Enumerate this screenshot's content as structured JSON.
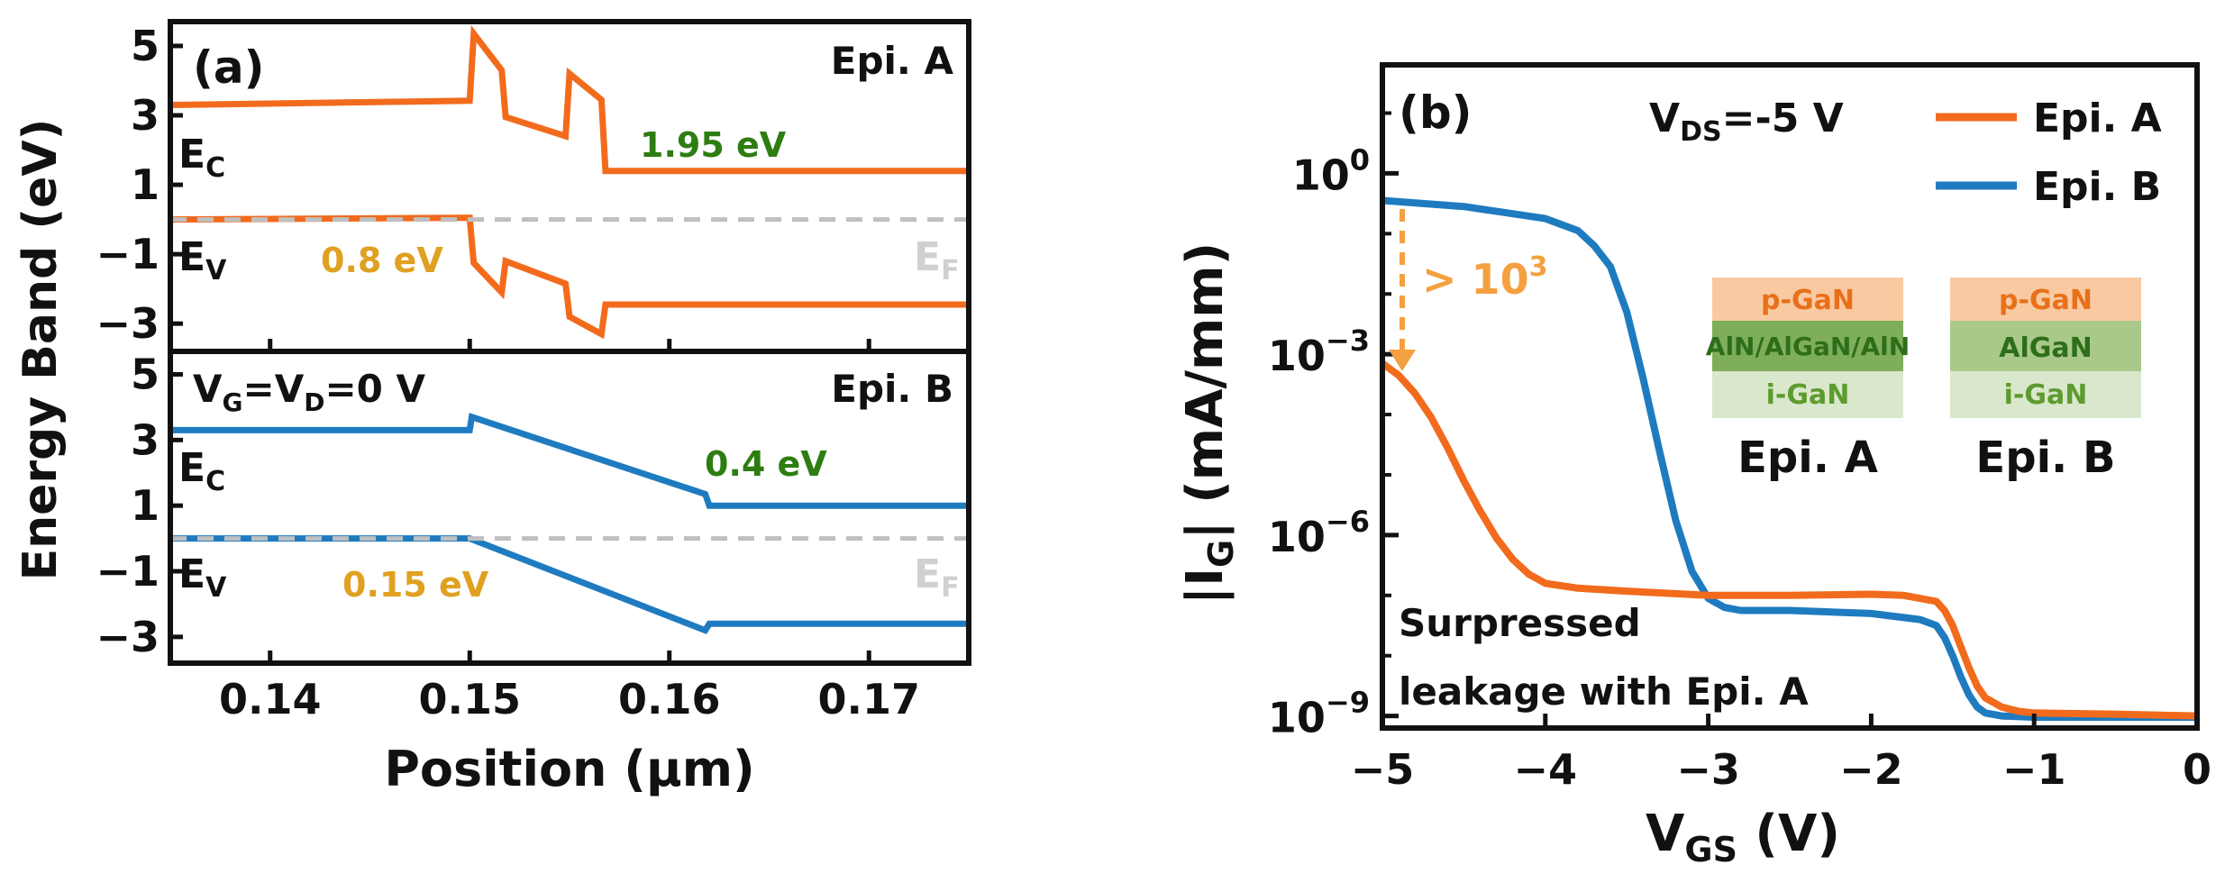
{
  "colors": {
    "epi_a": "#F26B1D",
    "epi_b": "#1F7BC0",
    "fermi": "#BFBFBF",
    "green_text": "#2E7D12",
    "gold_text": "#E0A020",
    "pgan": "#F9C9A2",
    "pgan_text": "#E8701A",
    "barrier": "#7FAE5A",
    "igan": "#D9E8CC",
    "igan_text": "#5E9B2E"
  },
  "chart_data": [
    {
      "id": "a",
      "type": "line",
      "panel_label": "(a)",
      "xlabel": "Position (µm)",
      "ylabel": "Energy Band (eV)",
      "xlim": [
        0.135,
        0.175
      ],
      "x_ticks": [
        "0.14",
        "0.15",
        "0.16",
        "0.17"
      ],
      "x_tick_values": [
        0.14,
        0.15,
        0.16,
        0.17
      ],
      "subplots": [
        {
          "id": "top",
          "name": "Epi. A",
          "ylim": [
            -3.8,
            5.7
          ],
          "y_ticks": [
            "5",
            "3",
            "1",
            "−1",
            "−3"
          ],
          "y_tick_values": [
            5,
            3,
            1,
            -1,
            -3
          ],
          "series": [
            {
              "name": "E_C",
              "x": [
                0.135,
                0.15,
                0.1502,
                0.1516,
                0.1518,
                0.1548,
                0.155,
                0.1566,
                0.1568,
                0.175
              ],
              "y": [
                3.3,
                3.42,
                5.35,
                4.3,
                2.95,
                2.4,
                4.2,
                3.45,
                1.4,
                1.4
              ]
            },
            {
              "name": "E_V",
              "x": [
                0.135,
                0.15,
                0.1502,
                0.1516,
                0.1518,
                0.1548,
                0.155,
                0.1566,
                0.1568,
                0.175
              ],
              "y": [
                0.0,
                0.05,
                -1.25,
                -2.1,
                -1.2,
                -1.85,
                -2.8,
                -3.3,
                -2.45,
                -2.45
              ]
            },
            {
              "name": "E_F",
              "x": [
                0.135,
                0.175
              ],
              "y": [
                0.0,
                0.0
              ],
              "dashed": true
            }
          ],
          "labels": {
            "ec": "E",
            "ec_sub": "C",
            "ev": "E",
            "ev_sub": "V",
            "ef": "E",
            "ef_sub": "F"
          },
          "annotations": {
            "gap_c": "1.95 eV",
            "gap_v": "0.8 eV",
            "epi": "Epi. A"
          }
        },
        {
          "id": "bottom",
          "name": "Epi. B",
          "ylim": [
            -3.8,
            5.7
          ],
          "y_ticks": [
            "5",
            "3",
            "1",
            "−1",
            "−3"
          ],
          "y_tick_values": [
            5,
            3,
            1,
            -1,
            -3
          ],
          "series": [
            {
              "name": "E_C",
              "x": [
                0.135,
                0.15,
                0.1501,
                0.1618,
                0.162,
                0.175
              ],
              "y": [
                3.3,
                3.3,
                3.7,
                1.35,
                1.0,
                1.0
              ]
            },
            {
              "name": "E_V",
              "x": [
                0.135,
                0.15,
                0.1618,
                0.162,
                0.175
              ],
              "y": [
                0.0,
                0.0,
                -2.8,
                -2.6,
                -2.6
              ]
            },
            {
              "name": "E_F",
              "x": [
                0.135,
                0.175
              ],
              "y": [
                0.0,
                0.0
              ],
              "dashed": true
            }
          ],
          "labels": {
            "ec": "E",
            "ec_sub": "C",
            "ev": "E",
            "ev_sub": "V",
            "ef": "E",
            "ef_sub": "F"
          },
          "annotations": {
            "gap_c": "0.4 eV",
            "gap_v": "0.15 eV",
            "epi": "Epi. B",
            "cond_prefix": "V",
            "cond_g": "G",
            "cond_mid": "=V",
            "cond_d": "D",
            "cond_suffix": "=0 V"
          }
        }
      ]
    },
    {
      "id": "b",
      "type": "line",
      "panel_label": "(b)",
      "xlabel_main": "V",
      "xlabel_sub": "GS",
      "xlabel_unit": " (V)",
      "ylabel_pre": "|I",
      "ylabel_sub": "G",
      "ylabel_post": "| (mA/mm)",
      "yscale": "log",
      "xlim": [
        -5,
        0
      ],
      "ylim_log10": [
        -9.2,
        1.8
      ],
      "x_ticks": [
        "−5",
        "−4",
        "−3",
        "−2",
        "−1",
        "0"
      ],
      "x_tick_values": [
        -5,
        -4,
        -3,
        -2,
        -1,
        0
      ],
      "y_ticks": [
        {
          "base": "10",
          "exp": "0",
          "log": 0
        },
        {
          "base": "10",
          "exp": "−3",
          "log": -3
        },
        {
          "base": "10",
          "exp": "−6",
          "log": -6
        },
        {
          "base": "10",
          "exp": "−9",
          "log": -9
        }
      ],
      "legend": [
        "Epi. A",
        "Epi. B"
      ],
      "series": [
        {
          "name": "Epi. A",
          "x": [
            -5,
            -4.9,
            -4.8,
            -4.7,
            -4.6,
            -4.5,
            -4.4,
            -4.3,
            -4.2,
            -4.1,
            -4.0,
            -3.8,
            -3.5,
            -3.0,
            -2.5,
            -2.0,
            -1.8,
            -1.6,
            -1.55,
            -1.5,
            -1.45,
            -1.4,
            -1.35,
            -1.3,
            -1.2,
            -1.1,
            -1.0,
            -0.5,
            0
          ],
          "log_y": [
            -3.15,
            -3.35,
            -3.65,
            -4.05,
            -4.55,
            -5.1,
            -5.6,
            -6.05,
            -6.4,
            -6.65,
            -6.8,
            -6.88,
            -6.93,
            -7.0,
            -7.0,
            -6.98,
            -7.0,
            -7.1,
            -7.25,
            -7.5,
            -7.85,
            -8.2,
            -8.5,
            -8.7,
            -8.85,
            -8.92,
            -8.95,
            -8.97,
            -9.0
          ]
        },
        {
          "name": "Epi. B",
          "x": [
            -5,
            -4.5,
            -4.0,
            -3.8,
            -3.7,
            -3.6,
            -3.5,
            -3.4,
            -3.3,
            -3.2,
            -3.1,
            -3.0,
            -2.9,
            -2.8,
            -2.7,
            -2.5,
            -2.0,
            -1.7,
            -1.6,
            -1.55,
            -1.5,
            -1.45,
            -1.4,
            -1.35,
            -1.3,
            -1.2,
            -1.0,
            -0.5,
            0
          ],
          "log_y": [
            -0.45,
            -0.55,
            -0.75,
            -0.95,
            -1.2,
            -1.55,
            -2.3,
            -3.4,
            -4.6,
            -5.75,
            -6.6,
            -7.05,
            -7.2,
            -7.25,
            -7.25,
            -7.25,
            -7.3,
            -7.4,
            -7.5,
            -7.7,
            -8.0,
            -8.35,
            -8.65,
            -8.85,
            -8.95,
            -9.0,
            -9.02,
            -9.02,
            -9.02
          ]
        }
      ],
      "annotations": {
        "vds_pre": "V",
        "vds_sub": "DS",
        "vds_post": "=-5 V",
        "ratio_base": "> 10",
        "ratio_exp": "3",
        "note_line1": "Surpressed",
        "note_line2": "leakage with Epi. A"
      },
      "insets": [
        {
          "title": "Epi. A",
          "layers": [
            "p-GaN",
            "AlN/AlGaN/AlN",
            "i-GaN"
          ]
        },
        {
          "title": "Epi. B",
          "layers": [
            "p-GaN",
            "AlGaN",
            "i-GaN"
          ]
        }
      ]
    }
  ]
}
